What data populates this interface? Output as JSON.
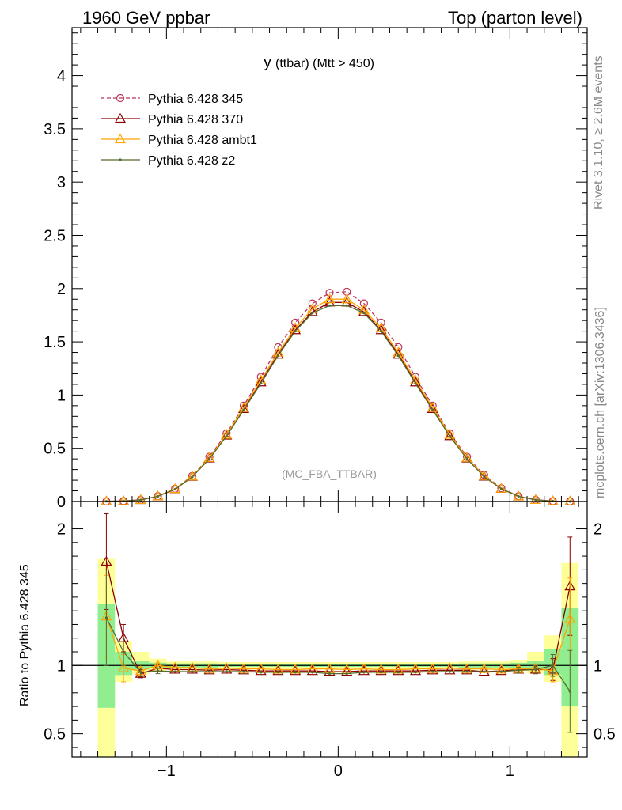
{
  "header": {
    "left": "1960 GeV ppbar",
    "right": "Top (parton level)"
  },
  "side_labels": {
    "rivet": "Rivet 3.1.10, ≥ 2.6M events",
    "source": "mcplots.cern.ch [arXiv:1306.3436]"
  },
  "chart_data": [
    {
      "type": "line",
      "title_main": "y",
      "title_sub": "(ttbar) (Mtt > 450)",
      "watermark": "(MC_FBA_TTBAR)",
      "xlim": [
        -1.55,
        1.45
      ],
      "ylim": [
        0,
        4.45
      ],
      "yticks": [
        0,
        0.5,
        1,
        1.5,
        2,
        2.5,
        3,
        3.5,
        4
      ],
      "yticklabels": [
        "0",
        "0.5",
        "1",
        "1.5",
        "2",
        "2.5",
        "3",
        "3.5",
        "4"
      ],
      "legend_position": "top-left",
      "x": [
        -1.35,
        -1.25,
        -1.15,
        -1.05,
        -0.95,
        -0.85,
        -0.75,
        -0.65,
        -0.55,
        -0.45,
        -0.35,
        -0.25,
        -0.15,
        -0.05,
        0.05,
        0.15,
        0.25,
        0.35,
        0.45,
        0.55,
        0.65,
        0.75,
        0.85,
        0.95,
        1.05,
        1.15,
        1.25,
        1.35
      ],
      "series": [
        {
          "name": "Pythia 6.428 345",
          "color": "#bb3355",
          "dash": true,
          "marker": "circle",
          "values": [
            0.0012,
            0.004,
            0.016,
            0.05,
            0.12,
            0.24,
            0.42,
            0.64,
            0.9,
            1.17,
            1.45,
            1.68,
            1.86,
            1.96,
            1.97,
            1.86,
            1.68,
            1.45,
            1.17,
            0.9,
            0.64,
            0.42,
            0.25,
            0.125,
            0.05,
            0.016,
            0.004,
            0.0012
          ]
        },
        {
          "name": "Pythia 6.428 370",
          "color": "#8b0000",
          "dash": false,
          "marker": "triangle",
          "values": [
            0.0021,
            0.005,
            0.015,
            0.049,
            0.116,
            0.233,
            0.405,
            0.62,
            0.87,
            1.12,
            1.38,
            1.61,
            1.78,
            1.87,
            1.87,
            1.78,
            1.61,
            1.38,
            1.12,
            0.87,
            0.615,
            0.405,
            0.235,
            0.12,
            0.048,
            0.0155,
            0.0038,
            0.0019
          ]
        },
        {
          "name": "Pythia 6.428 ambt1",
          "color": "#ffa500",
          "dash": false,
          "marker": "triangle",
          "values": [
            0.0016,
            0.0039,
            0.0152,
            0.05,
            0.118,
            0.236,
            0.41,
            0.628,
            0.88,
            1.14,
            1.4,
            1.63,
            1.81,
            1.9,
            1.9,
            1.8,
            1.63,
            1.4,
            1.14,
            0.88,
            0.628,
            0.41,
            0.24,
            0.121,
            0.049,
            0.0155,
            0.0039,
            0.0016
          ]
        },
        {
          "name": "Pythia 6.428 z2",
          "color": "#556b2f",
          "dash": false,
          "marker": "dot",
          "values": [
            0.0016,
            0.0044,
            0.0152,
            0.048,
            0.114,
            0.23,
            0.4,
            0.615,
            0.86,
            1.11,
            1.37,
            1.6,
            1.77,
            1.84,
            1.84,
            1.77,
            1.6,
            1.37,
            1.11,
            0.86,
            0.613,
            0.4,
            0.232,
            0.119,
            0.048,
            0.0155,
            0.0039,
            0.001
          ]
        }
      ]
    },
    {
      "type": "line",
      "ylabel": "Ratio to Pythia 6.428 345",
      "xlim": [
        -1.55,
        1.45
      ],
      "ylim": [
        0.33,
        2.2
      ],
      "xticks": [
        -1,
        0,
        1
      ],
      "xticklabels": [
        "−1",
        "0",
        "1"
      ],
      "yticks": [
        0.5,
        1,
        2
      ],
      "yticklabels": [
        "0.5",
        "1",
        "2"
      ],
      "reference_line": 1,
      "x": [
        -1.35,
        -1.25,
        -1.15,
        -1.05,
        -0.95,
        -0.85,
        -0.75,
        -0.65,
        -0.55,
        -0.45,
        -0.35,
        -0.25,
        -0.15,
        -0.05,
        0.05,
        0.15,
        0.25,
        0.35,
        0.45,
        0.55,
        0.65,
        0.75,
        0.85,
        0.95,
        1.05,
        1.15,
        1.25,
        1.35
      ],
      "band_inner": [
        [
          0.69,
          1.45
        ],
        [
          0.93,
          1.1
        ],
        [
          0.97,
          1.03
        ],
        [
          0.98,
          1.02
        ],
        [
          0.985,
          1.015
        ],
        [
          0.985,
          1.015
        ],
        [
          0.985,
          1.015
        ],
        [
          0.99,
          1.01
        ],
        [
          0.99,
          1.01
        ],
        [
          0.99,
          1.01
        ],
        [
          0.99,
          1.01
        ],
        [
          0.99,
          1.01
        ],
        [
          0.99,
          1.01
        ],
        [
          0.99,
          1.01
        ],
        [
          0.99,
          1.01
        ],
        [
          0.99,
          1.01
        ],
        [
          0.99,
          1.01
        ],
        [
          0.99,
          1.01
        ],
        [
          0.99,
          1.01
        ],
        [
          0.99,
          1.01
        ],
        [
          0.99,
          1.01
        ],
        [
          0.985,
          1.015
        ],
        [
          0.985,
          1.015
        ],
        [
          0.985,
          1.015
        ],
        [
          0.98,
          1.02
        ],
        [
          0.97,
          1.03
        ],
        [
          0.93,
          1.12
        ],
        [
          0.7,
          1.42
        ]
      ],
      "band_outer": [
        [
          0.3,
          1.78
        ],
        [
          0.88,
          1.18
        ],
        [
          0.94,
          1.1
        ],
        [
          0.96,
          1.05
        ],
        [
          0.97,
          1.03
        ],
        [
          0.97,
          1.03
        ],
        [
          0.97,
          1.03
        ],
        [
          0.975,
          1.025
        ],
        [
          0.975,
          1.025
        ],
        [
          0.975,
          1.025
        ],
        [
          0.975,
          1.025
        ],
        [
          0.975,
          1.025
        ],
        [
          0.975,
          1.025
        ],
        [
          0.975,
          1.025
        ],
        [
          0.975,
          1.025
        ],
        [
          0.975,
          1.025
        ],
        [
          0.975,
          1.025
        ],
        [
          0.975,
          1.025
        ],
        [
          0.975,
          1.025
        ],
        [
          0.975,
          1.025
        ],
        [
          0.975,
          1.025
        ],
        [
          0.97,
          1.03
        ],
        [
          0.97,
          1.03
        ],
        [
          0.97,
          1.03
        ],
        [
          0.96,
          1.04
        ],
        [
          0.94,
          1.1
        ],
        [
          0.88,
          1.22
        ],
        [
          0.3,
          1.75
        ]
      ],
      "series": [
        {
          "name": "Pythia 6.428 370",
          "color": "#8b0000",
          "dash": false,
          "marker": "triangle",
          "values": [
            1.76,
            1.2,
            0.94,
            0.98,
            0.97,
            0.97,
            0.965,
            0.97,
            0.965,
            0.96,
            0.96,
            0.96,
            0.96,
            0.955,
            0.955,
            0.96,
            0.96,
            0.96,
            0.96,
            0.965,
            0.965,
            0.965,
            0.955,
            0.96,
            0.97,
            0.97,
            0.97,
            1.58
          ],
          "errors": [
            0.35,
            0.1,
            0.03,
            0.02,
            0.01,
            0.01,
            0.01,
            0.01,
            0.01,
            0.01,
            0.01,
            0.01,
            0.01,
            0.01,
            0.01,
            0.01,
            0.01,
            0.01,
            0.01,
            0.01,
            0.01,
            0.01,
            0.01,
            0.01,
            0.02,
            0.03,
            0.08,
            0.36
          ]
        },
        {
          "name": "Pythia 6.428 ambt1",
          "color": "#ffa500",
          "dash": false,
          "marker": "triangle",
          "values": [
            1.36,
            0.98,
            0.96,
            1.0,
            0.985,
            0.985,
            0.975,
            0.98,
            0.975,
            0.975,
            0.97,
            0.97,
            0.975,
            0.975,
            0.97,
            0.975,
            0.97,
            0.97,
            0.975,
            0.975,
            0.98,
            0.975,
            0.975,
            0.97,
            0.975,
            0.98,
            0.96,
            1.34
          ],
          "errors": [
            0.3,
            0.1,
            0.03,
            0.02,
            0.01,
            0.01,
            0.01,
            0.01,
            0.01,
            0.01,
            0.01,
            0.01,
            0.01,
            0.01,
            0.01,
            0.01,
            0.01,
            0.01,
            0.01,
            0.01,
            0.01,
            0.01,
            0.01,
            0.01,
            0.02,
            0.03,
            0.08,
            0.3
          ]
        },
        {
          "name": "Pythia 6.428 z2",
          "color": "#556b2f",
          "dash": false,
          "marker": "dot",
          "values": [
            1.35,
            1.1,
            0.95,
            0.96,
            0.955,
            0.955,
            0.955,
            0.955,
            0.955,
            0.95,
            0.95,
            0.95,
            0.95,
            0.94,
            0.94,
            0.95,
            0.95,
            0.95,
            0.95,
            0.955,
            0.955,
            0.955,
            0.955,
            0.955,
            0.965,
            0.97,
            1.0,
            0.81
          ],
          "errors": [
            0.35,
            0.1,
            0.03,
            0.02,
            0.01,
            0.01,
            0.01,
            0.01,
            0.01,
            0.01,
            0.01,
            0.01,
            0.01,
            0.01,
            0.01,
            0.01,
            0.01,
            0.01,
            0.01,
            0.01,
            0.01,
            0.01,
            0.01,
            0.01,
            0.02,
            0.03,
            0.08,
            0.3
          ]
        }
      ]
    }
  ]
}
